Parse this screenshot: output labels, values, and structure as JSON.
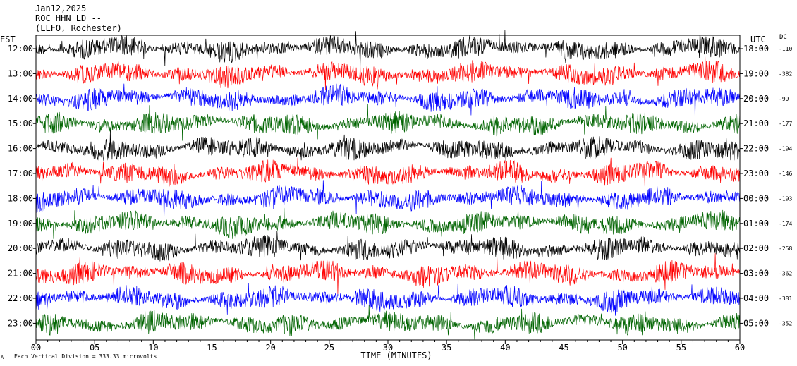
{
  "header": {
    "date": "Jan12,2025",
    "station": "ROC HHN LD --",
    "location": "(LLFO, Rochester)"
  },
  "left_tz": "EST",
  "right_tz": "UTC",
  "dc_header": "DC",
  "footer": {
    "mark": "A",
    "scale_text": "Each Vertical Division =  333.33 microvolts"
  },
  "chart_data": {
    "type": "line",
    "title": "",
    "xlabel": "TIME (MINUTES)",
    "xlim": [
      0,
      60
    ],
    "x_ticks": [
      "00",
      "05",
      "10",
      "15",
      "20",
      "25",
      "30",
      "35",
      "40",
      "45",
      "50",
      "55",
      "60"
    ],
    "colors": [
      "#000000",
      "#ff0000",
      "#0000ff",
      "#006400"
    ],
    "rows": [
      {
        "left": "12:00",
        "right": "18:00",
        "dc": "-110"
      },
      {
        "left": "13:00",
        "right": "19:00",
        "dc": "-382"
      },
      {
        "left": "14:00",
        "right": "20:00",
        "dc": "-99"
      },
      {
        "left": "15:00",
        "right": "21:00",
        "dc": "-177"
      },
      {
        "left": "16:00",
        "right": "22:00",
        "dc": "-194"
      },
      {
        "left": "17:00",
        "right": "23:00",
        "dc": "-146"
      },
      {
        "left": "18:00",
        "right": "00:00",
        "dc": "-193"
      },
      {
        "left": "19:00",
        "right": "01:00",
        "dc": "-174"
      },
      {
        "left": "20:00",
        "right": "02:00",
        "dc": "-258"
      },
      {
        "left": "21:00",
        "right": "03:00",
        "dc": "-362"
      },
      {
        "left": "22:00",
        "right": "04:00",
        "dc": "-381"
      },
      {
        "left": "23:00",
        "right": "05:00",
        "dc": "-352"
      }
    ]
  }
}
